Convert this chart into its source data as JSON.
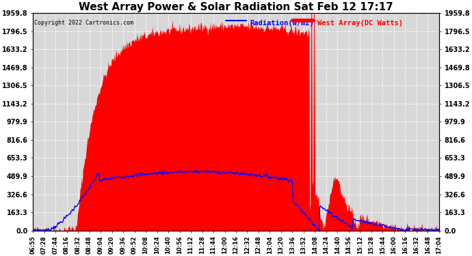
{
  "title": "West Array Power & Solar Radiation Sat Feb 12 17:17",
  "copyright": "Copyright 2022 Cartronics.com",
  "legend_radiation": "Radiation(w/m2)",
  "legend_west_array": "West Array(DC Watts)",
  "ymax": 1959.8,
  "ymin": 0.0,
  "yticks": [
    0.0,
    163.3,
    326.6,
    489.9,
    653.3,
    816.6,
    979.9,
    1143.2,
    1306.5,
    1469.8,
    1633.2,
    1796.5,
    1959.8
  ],
  "background_color": "#ffffff",
  "plot_bg_color": "#d8d8d8",
  "grid_color": "#ffffff",
  "fill_color_red": "#ff0000",
  "line_color_blue": "#0000ff",
  "title_color": "#000000",
  "x_tick_labels": [
    "06:55",
    "07:28",
    "07:44",
    "08:16",
    "08:32",
    "08:48",
    "09:04",
    "09:20",
    "09:36",
    "09:52",
    "10:08",
    "10:24",
    "10:40",
    "10:56",
    "11:12",
    "11:28",
    "11:44",
    "12:00",
    "12:16",
    "12:32",
    "12:48",
    "13:04",
    "13:20",
    "13:36",
    "13:52",
    "14:08",
    "14:24",
    "14:40",
    "14:56",
    "15:12",
    "15:28",
    "15:44",
    "16:00",
    "16:16",
    "16:32",
    "16:48",
    "17:04"
  ]
}
